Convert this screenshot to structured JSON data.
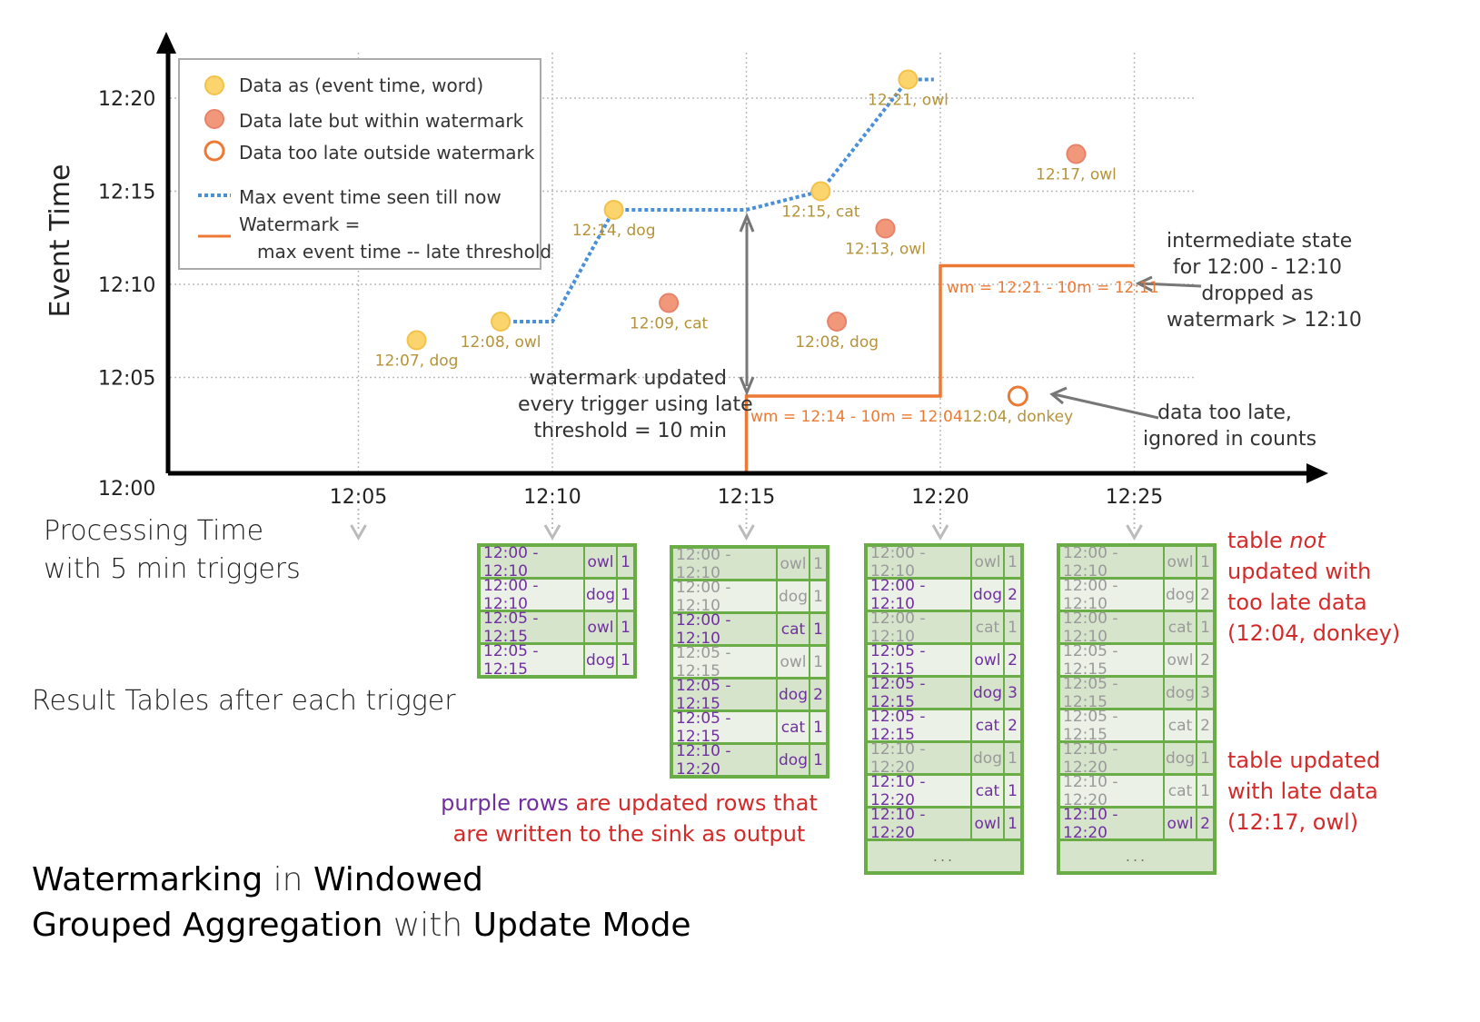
{
  "colors": {
    "grid": "#bbbbbb",
    "axis": "#000000",
    "point": "#fbd46d",
    "point_stroke": "#f3c24a",
    "late": "#f2987a",
    "late_stroke": "#e8826a",
    "too_late": "#ec7a34",
    "max_line": "#4a90d9",
    "watermark": "#ec7a34",
    "point_label": "#b59338",
    "table_border": "#6aac45",
    "updated_row": "#7030a0",
    "stale_row": "#9a9a9a",
    "annotation_red": "#d42a2a"
  },
  "chart": {
    "y_axis_label": "Event Time",
    "x_axis_label_line1": "Processing Time",
    "x_axis_label_line2": "with 5 min triggers",
    "x_ticks": [
      "12:05",
      "12:10",
      "12:15",
      "12:20",
      "12:25"
    ],
    "y_ticks": [
      "12:00",
      "12:05",
      "12:10",
      "12:15",
      "12:20"
    ]
  },
  "chart_data": {
    "type": "scatter",
    "xlabel": "Processing Time",
    "ylabel": "Event Time",
    "points": [
      {
        "processing_time": "12:06:30",
        "event_time": "12:07",
        "word": "dog",
        "label": "12:07, dog",
        "kind": "on-time"
      },
      {
        "processing_time": "12:08:40",
        "event_time": "12:08",
        "word": "owl",
        "label": "12:08, owl",
        "kind": "on-time"
      },
      {
        "processing_time": "12:11:35",
        "event_time": "12:14",
        "word": "dog",
        "label": "12:14, dog",
        "kind": "on-time"
      },
      {
        "processing_time": "12:13:00",
        "event_time": "12:09",
        "word": "cat",
        "label": "12:09, cat",
        "kind": "late"
      },
      {
        "processing_time": "12:16:55",
        "event_time": "12:15",
        "word": "cat",
        "label": "12:15, cat",
        "kind": "on-time"
      },
      {
        "processing_time": "12:17:20",
        "event_time": "12:08",
        "word": "dog",
        "label": "12:08, dog",
        "kind": "late"
      },
      {
        "processing_time": "12:18:35",
        "event_time": "12:13",
        "word": "owl",
        "label": "12:13, owl",
        "kind": "late"
      },
      {
        "processing_time": "12:19:10",
        "event_time": "12:21",
        "word": "owl",
        "label": "12:21, owl",
        "kind": "on-time"
      },
      {
        "processing_time": "12:22:00",
        "event_time": "12:04",
        "word": "donkey",
        "label": "12:04, donkey",
        "kind": "too-late"
      },
      {
        "processing_time": "12:23:30",
        "event_time": "12:17",
        "word": "owl",
        "label": "12:17, owl",
        "kind": "late"
      }
    ],
    "max_event_time_line": [
      [
        "12:08:40",
        "12:08"
      ],
      [
        "12:10:00",
        "12:08"
      ],
      [
        "12:11:35",
        "12:14"
      ],
      [
        "12:15:00",
        "12:14"
      ],
      [
        "12:16:55",
        "12:15"
      ],
      [
        "12:19:10",
        "12:21"
      ],
      [
        "12:19:50",
        "12:21"
      ]
    ],
    "watermark_line": [
      [
        "12:15:00",
        "12:00"
      ],
      [
        "12:15:00",
        "12:04"
      ],
      [
        "12:20:00",
        "12:04"
      ],
      [
        "12:20:00",
        "12:11"
      ],
      [
        "12:25:00",
        "12:11"
      ]
    ],
    "xlim": [
      "12:00",
      "12:30"
    ],
    "ylim": [
      "12:00",
      "12:22"
    ]
  },
  "legend": {
    "items": [
      "Data as (event time, word)",
      "Data late but within watermark",
      "Data too late outside watermark",
      "Max event time seen till now"
    ],
    "watermark_line1": "Watermark =",
    "watermark_line2": "max event time -- late threshold"
  },
  "annotations": {
    "wm1": "wm = 12:14 - 10m = 12:04",
    "wm2": "wm = 12:21 - 10m = 12:11",
    "wm_updated": [
      "watermark updated",
      "every trigger using late",
      "threshold = 10 min"
    ],
    "intermediate": [
      "intermediate state",
      "for 12:00 - 12:10",
      "dropped as",
      "watermark > 12:10"
    ],
    "too_late": [
      "data too late,",
      "ignored in counts"
    ],
    "table_not_a": "table ",
    "table_not_b": "not",
    "table_not_rest": [
      "updated with",
      "too late data",
      "(12:04, donkey)"
    ],
    "table_updated": [
      "table updated",
      "with late data",
      "(12:17, owl)"
    ],
    "purple_a": "purple rows",
    "purple_b": " are updated rows that",
    "purple_c": "are written to the sink as output",
    "result_tables": "Result Tables after each trigger"
  },
  "title": {
    "w1": "Watermarking",
    "w2": " in ",
    "w3": "Windowed",
    "w4": "Grouped Aggregation",
    "w5": " with ",
    "w6": "Update Mode"
  },
  "tables": [
    {
      "rows": [
        [
          "12:00 - 12:10",
          "owl",
          "1",
          true
        ],
        [
          "12:00 - 12:10",
          "dog",
          "1",
          true
        ],
        [
          "12:05 - 12:15",
          "owl",
          "1",
          true
        ],
        [
          "12:05 - 12:15",
          "dog",
          "1",
          true
        ]
      ],
      "ellipsis": ""
    },
    {
      "rows": [
        [
          "12:00 - 12:10",
          "owl",
          "1",
          false
        ],
        [
          "12:00 - 12:10",
          "dog",
          "1",
          false
        ],
        [
          "12:00 - 12:10",
          "cat",
          "1",
          true
        ],
        [
          "12:05 - 12:15",
          "owl",
          "1",
          false
        ],
        [
          "12:05 - 12:15",
          "dog",
          "2",
          true
        ],
        [
          "12:05 - 12:15",
          "cat",
          "1",
          true
        ],
        [
          "12:10 - 12:20",
          "dog",
          "1",
          true
        ]
      ],
      "ellipsis": ""
    },
    {
      "rows": [
        [
          "12:00 - 12:10",
          "owl",
          "1",
          false
        ],
        [
          "12:00 - 12:10",
          "dog",
          "2",
          true
        ],
        [
          "12:00 - 12:10",
          "cat",
          "1",
          false
        ],
        [
          "12:05 - 12:15",
          "owl",
          "2",
          true
        ],
        [
          "12:05 - 12:15",
          "dog",
          "3",
          true
        ],
        [
          "12:05 - 12:15",
          "cat",
          "2",
          true
        ],
        [
          "12:10 - 12:20",
          "dog",
          "1",
          false
        ],
        [
          "12:10 - 12:20",
          "cat",
          "1",
          true
        ],
        [
          "12:10 - 12:20",
          "owl",
          "1",
          true
        ]
      ],
      "ellipsis": "..."
    },
    {
      "rows": [
        [
          "12:00 - 12:10",
          "owl",
          "1",
          false
        ],
        [
          "12:00 - 12:10",
          "dog",
          "2",
          false
        ],
        [
          "12:00 - 12:10",
          "cat",
          "1",
          false
        ],
        [
          "12:05 - 12:15",
          "owl",
          "2",
          false
        ],
        [
          "12:05 - 12:15",
          "dog",
          "3",
          false
        ],
        [
          "12:05 - 12:15",
          "cat",
          "2",
          false
        ],
        [
          "12:10 - 12:20",
          "dog",
          "1",
          false
        ],
        [
          "12:10 - 12:20",
          "cat",
          "1",
          false
        ],
        [
          "12:10 - 12:20",
          "owl",
          "2",
          true
        ]
      ],
      "ellipsis": "..."
    }
  ]
}
